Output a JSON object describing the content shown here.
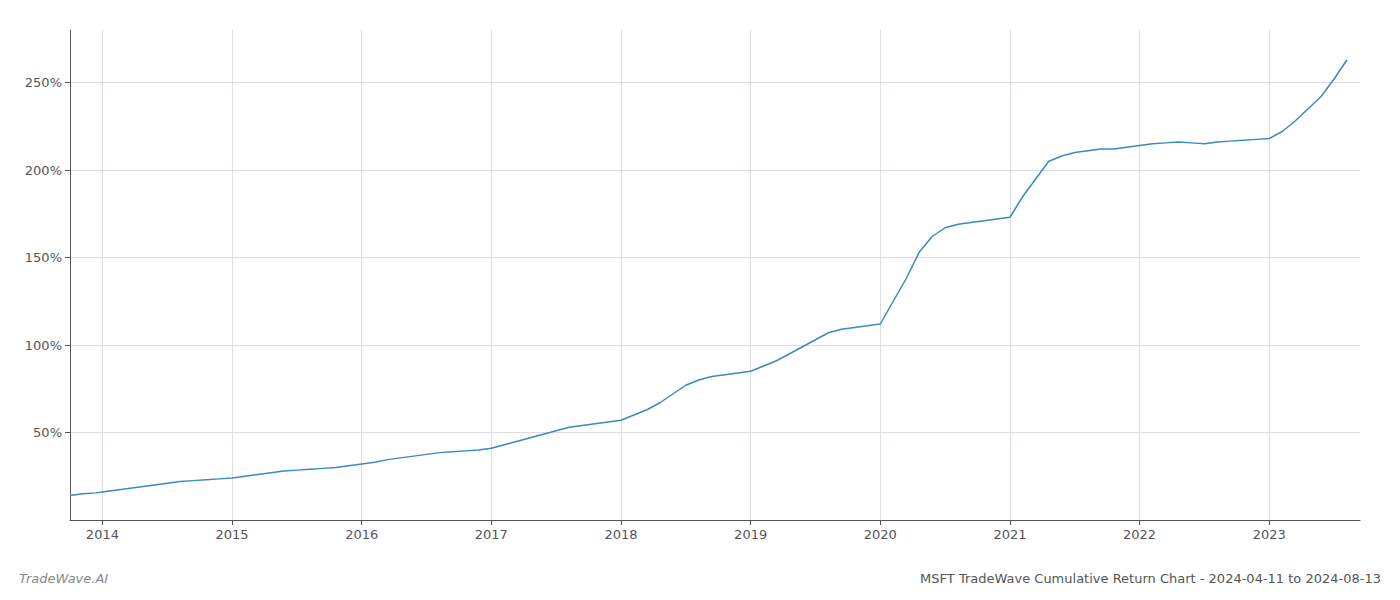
{
  "chart_data": {
    "type": "line",
    "title": "MSFT TradeWave Cumulative Return Chart - 2024-04-11 to 2024-08-13",
    "annotations": [
      "TradeWave.AI"
    ],
    "color": "#3a8abf",
    "grid": true,
    "x": [
      2013.75,
      2013.85,
      2013.95,
      2014.0,
      2014.1,
      2014.2,
      2014.3,
      2014.4,
      2014.5,
      2014.6,
      2014.7,
      2014.8,
      2014.9,
      2015.0,
      2015.1,
      2015.2,
      2015.3,
      2015.4,
      2015.5,
      2015.6,
      2015.7,
      2015.8,
      2015.9,
      2016.0,
      2016.1,
      2016.2,
      2016.3,
      2016.4,
      2016.5,
      2016.6,
      2016.7,
      2016.8,
      2016.9,
      2017.0,
      2017.1,
      2017.2,
      2017.3,
      2017.4,
      2017.5,
      2017.6,
      2017.7,
      2017.8,
      2017.9,
      2018.0,
      2018.1,
      2018.2,
      2018.3,
      2018.4,
      2018.5,
      2018.6,
      2018.7,
      2018.8,
      2018.9,
      2019.0,
      2019.1,
      2019.2,
      2019.3,
      2019.4,
      2019.5,
      2019.6,
      2019.7,
      2019.8,
      2019.9,
      2020.0,
      2020.1,
      2020.2,
      2020.3,
      2020.4,
      2020.5,
      2020.6,
      2020.7,
      2020.8,
      2020.9,
      2021.0,
      2021.1,
      2021.2,
      2021.3,
      2021.4,
      2021.5,
      2021.6,
      2021.7,
      2021.8,
      2021.9,
      2022.0,
      2022.1,
      2022.2,
      2022.3,
      2022.4,
      2022.5,
      2022.6,
      2022.7,
      2022.8,
      2022.9,
      2023.0,
      2023.1,
      2023.2,
      2023.3,
      2023.4,
      2023.5,
      2023.6
    ],
    "values": [
      14,
      15,
      15.5,
      16,
      17,
      18,
      19,
      20,
      21,
      22,
      22.5,
      23,
      23.5,
      24,
      25,
      26,
      27,
      28,
      28.5,
      29,
      29.5,
      30,
      31,
      32,
      33,
      34.5,
      35.5,
      36.5,
      37.5,
      38.5,
      39,
      39.5,
      40,
      41,
      43,
      45,
      47,
      49,
      51,
      53,
      54,
      55,
      56,
      57,
      60,
      63,
      67,
      72,
      77,
      80,
      82,
      83,
      84,
      85,
      88,
      91,
      95,
      99,
      103,
      107,
      109,
      110,
      111,
      112,
      125,
      138,
      153,
      162,
      167,
      169,
      170,
      171,
      172,
      173,
      185,
      195,
      205,
      208,
      210,
      211,
      212,
      212,
      213,
      214,
      215,
      215.5,
      216,
      215.5,
      215,
      216,
      216.5,
      217,
      217.5,
      218,
      222,
      228,
      235,
      242,
      252,
      263
    ],
    "xlim": [
      2013.75,
      2023.7
    ],
    "xticks": [
      2014,
      2015,
      2016,
      2017,
      2018,
      2019,
      2020,
      2021,
      2022,
      2023
    ],
    "ylim": [
      0,
      280
    ],
    "yticks": [
      {
        "value": 50,
        "label": "50%"
      },
      {
        "value": 100,
        "label": "100%"
      },
      {
        "value": 150,
        "label": "150%"
      },
      {
        "value": 200,
        "label": "200%"
      },
      {
        "value": 250,
        "label": "250%"
      }
    ]
  }
}
